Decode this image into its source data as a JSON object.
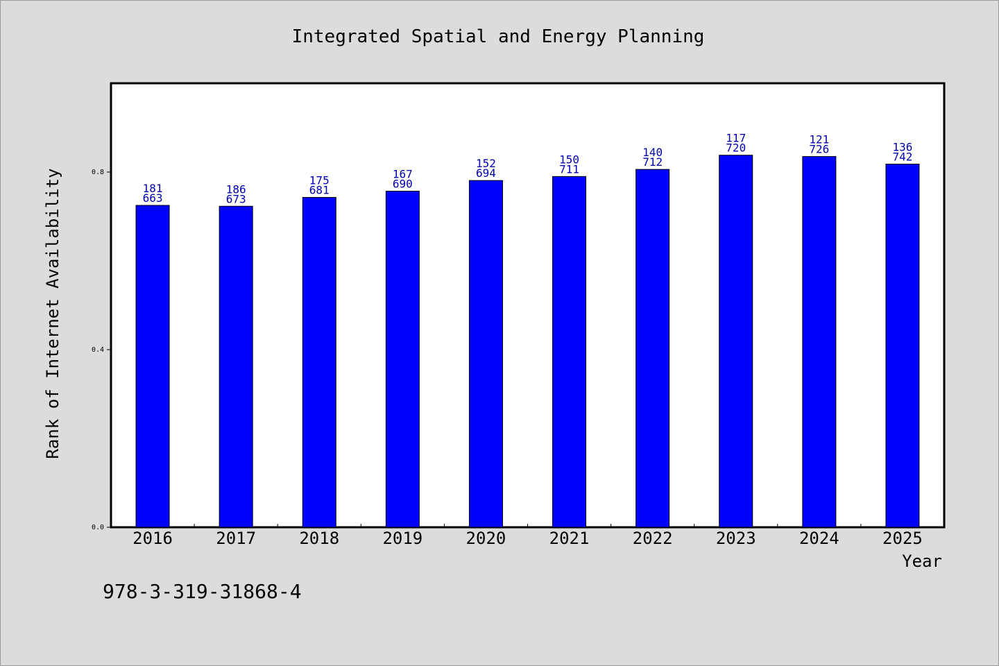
{
  "chart_data": {
    "type": "bar",
    "title": "Integrated Spatial and Energy Planning",
    "xlabel": "Year",
    "ylabel": "Rank of Internet Availability",
    "categories": [
      "2016",
      "2017",
      "2018",
      "2019",
      "2020",
      "2021",
      "2022",
      "2023",
      "2024",
      "2025"
    ],
    "values": [
      0.725,
      0.723,
      0.743,
      0.757,
      0.781,
      0.79,
      0.806,
      0.838,
      0.835,
      0.818
    ],
    "data_labels": [
      [
        "181",
        "663"
      ],
      [
        "186",
        "673"
      ],
      [
        "175",
        "681"
      ],
      [
        "167",
        "690"
      ],
      [
        "152",
        "694"
      ],
      [
        "150",
        "711"
      ],
      [
        "140",
        "712"
      ],
      [
        "117",
        "720"
      ],
      [
        "121",
        "726"
      ],
      [
        "136",
        "742"
      ]
    ],
    "yticks": [
      "0.0",
      "0.4",
      "0.8"
    ],
    "ytick_values": [
      0.0,
      0.4,
      0.8
    ],
    "ylim": [
      0,
      1.0
    ],
    "grid": false,
    "bar_color": "#0000ff",
    "label_color": "#0000b4"
  },
  "footer_text": "978-3-319-31868-4"
}
